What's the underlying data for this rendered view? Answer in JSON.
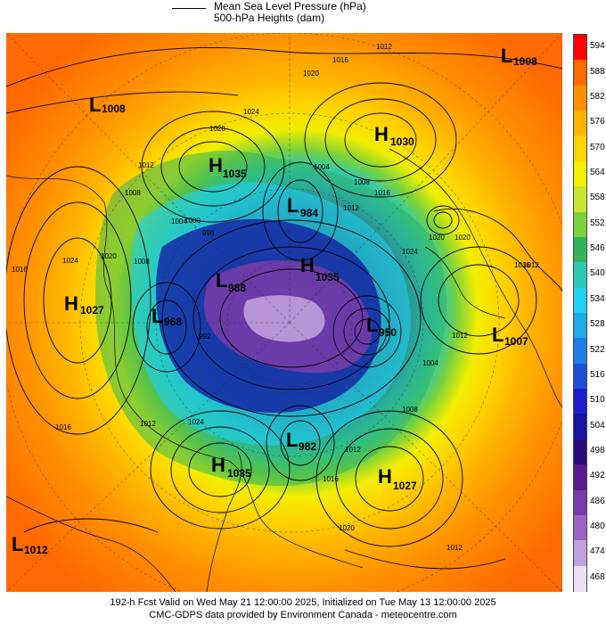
{
  "legend": {
    "line1": "Mean Sea Level Pressure (hPa)",
    "line2": "500-hPa Heights (dam)"
  },
  "colorbar": {
    "labels": [
      "594",
      "588",
      "582",
      "576",
      "570",
      "564",
      "558",
      "552",
      "546",
      "540",
      "534",
      "528",
      "522",
      "516",
      "510",
      "504",
      "498",
      "492",
      "486",
      "480",
      "474",
      "468"
    ],
    "colors": [
      "#ff0000",
      "#ff6a00",
      "#ff9000",
      "#ffb400",
      "#ffd400",
      "#f2ee00",
      "#c8e632",
      "#7ad23c",
      "#34b45a",
      "#2ec8b4",
      "#20d2f0",
      "#1eaae6",
      "#1e7ee6",
      "#1e4ed2",
      "#1e1ec8",
      "#1414a0",
      "#2c0a78",
      "#5a1c90",
      "#7a3ca8",
      "#9a64c0",
      "#c0a0dc",
      "#ece0f4"
    ]
  },
  "pressure_centers": [
    {
      "type": "L",
      "value": "1008"
    },
    {
      "type": "L",
      "value": "1008"
    },
    {
      "type": "H",
      "value": "1035"
    },
    {
      "type": "H",
      "value": "1030"
    },
    {
      "type": "L",
      "value": "984"
    },
    {
      "type": "H",
      "value": "1027"
    },
    {
      "type": "L",
      "value": "968"
    },
    {
      "type": "L",
      "value": "988"
    },
    {
      "type": "H",
      "value": "1035"
    },
    {
      "type": "L",
      "value": "950"
    },
    {
      "type": "L",
      "value": "1007"
    },
    {
      "type": "L",
      "value": "982"
    },
    {
      "type": "H",
      "value": "1035"
    },
    {
      "type": "H",
      "value": "1027"
    },
    {
      "type": "L",
      "value": "1012"
    }
  ],
  "isobar_labels": [
    "1012",
    "1016",
    "1020",
    "1024",
    "1028",
    "1008",
    "1012",
    "1004",
    "1000",
    "996",
    "1020",
    "1016",
    "1024",
    "1008",
    "1012",
    "1016",
    "1020",
    "1024",
    "1004",
    "1008",
    "992",
    "1012",
    "1016",
    "1020",
    "1012",
    "1008",
    "1004",
    "1016",
    "1012",
    "1016",
    "1020",
    "1024",
    "1012",
    "1012"
  ],
  "footer": {
    "line1": "192-h Fcst Valid on Wed May 21 12:00:00 2025, Initialized on Tue May 13 12:00:00 2025",
    "line2": "CMC-GDPS data provided by Environment Canada - meteocentre.com"
  }
}
